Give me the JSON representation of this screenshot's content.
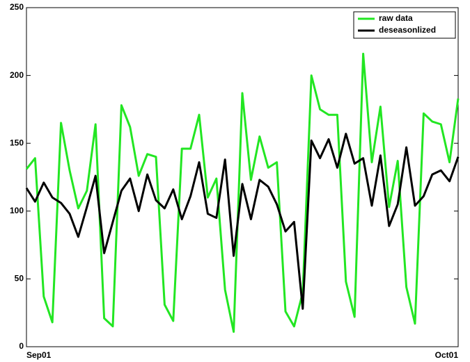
{
  "chart_data": {
    "type": "line",
    "categories": [
      "Sep01",
      null,
      null,
      null,
      null,
      null,
      null,
      null,
      null,
      null,
      null,
      null,
      null,
      null,
      null,
      null,
      null,
      null,
      null,
      null,
      null,
      null,
      null,
      null,
      null,
      null,
      null,
      null,
      null,
      null,
      null,
      null,
      null,
      null,
      null,
      null,
      null,
      null,
      null,
      null,
      null,
      null,
      null,
      null,
      null,
      null,
      null,
      null,
      null,
      null,
      "Oct01"
    ],
    "series": [
      {
        "name": "raw data",
        "color": "#22e622",
        "values": [
          131,
          139,
          37,
          18,
          165,
          130,
          102,
          115,
          164,
          21,
          15,
          178,
          162,
          126,
          142,
          140,
          31,
          19,
          146,
          146,
          171,
          110,
          124,
          42,
          11,
          187,
          123,
          155,
          132,
          136,
          26,
          15,
          40,
          200,
          175,
          171,
          171,
          48,
          22,
          216,
          136,
          177,
          103,
          137,
          44,
          17,
          172,
          166,
          164,
          136,
          183
        ]
      },
      {
        "name": "deseasonlized",
        "color": "#000000",
        "values": [
          117,
          107,
          121,
          110,
          106,
          98,
          81,
          103,
          126,
          69,
          92,
          115,
          124,
          100,
          127,
          108,
          102,
          116,
          94,
          111,
          136,
          98,
          95,
          138,
          67,
          120,
          94,
          123,
          118,
          105,
          85,
          92,
          28,
          152,
          139,
          153,
          132,
          157,
          135,
          139,
          104,
          141,
          89,
          105,
          147,
          104,
          111,
          127,
          130,
          122,
          140
        ]
      }
    ],
    "ylim": [
      0,
      250
    ],
    "yticks": [
      0,
      50,
      100,
      150,
      200,
      250
    ],
    "grid": false,
    "legend": "top-right"
  }
}
